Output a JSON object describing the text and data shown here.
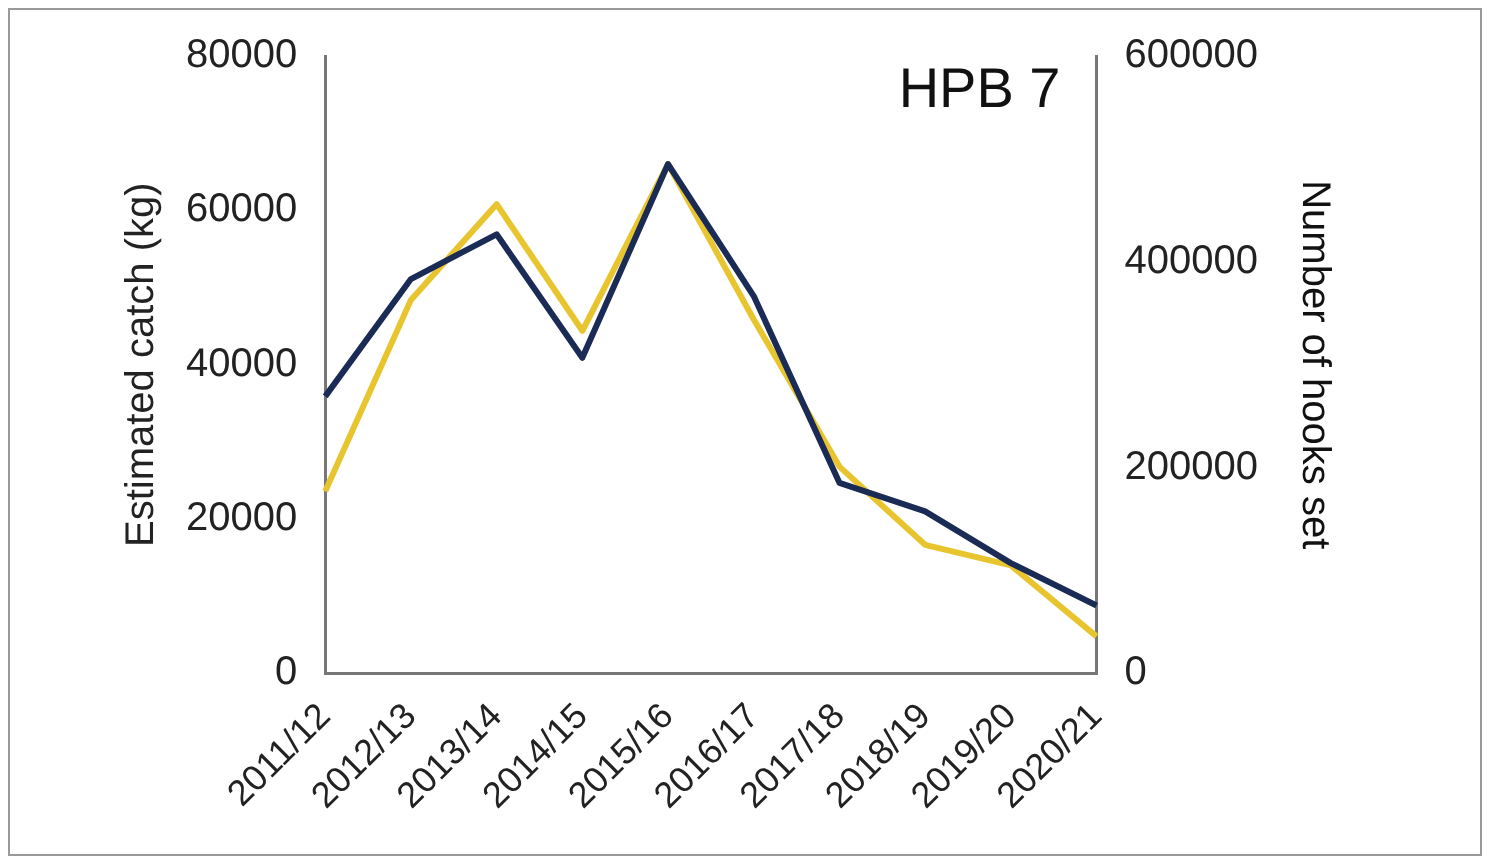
{
  "chart_data": {
    "type": "line",
    "title": "HPB 7",
    "ylabel": "Estimated catch (kg)",
    "y2label": "Number of hooks set",
    "categories": [
      "2011/12",
      "2012/13",
      "2013/14",
      "2014/15",
      "2015/16",
      "2016/17",
      "2017/18",
      "2018/19",
      "2019/20",
      "2020/21"
    ],
    "series": [
      {
        "color": "#1a2b55",
        "values": [
          35900,
          51100,
          56900,
          40900,
          66000,
          48900,
          24700,
          21000,
          14300,
          8800
        ]
      },
      {
        "color": "#e8c52e",
        "axis": "y2",
        "values": [
          177000,
          363000,
          456000,
          333000,
          495000,
          344000,
          201000,
          125000,
          105000,
          36000
        ]
      }
    ],
    "ylim": [
      0,
      80000
    ],
    "yticks": [
      0,
      20000,
      40000,
      60000,
      80000
    ],
    "y2lim": [
      0,
      600000
    ],
    "y2ticks": [
      0,
      200000,
      400000,
      600000
    ],
    "grid": false,
    "legend": false,
    "marker": "none",
    "line_style": "solid"
  }
}
